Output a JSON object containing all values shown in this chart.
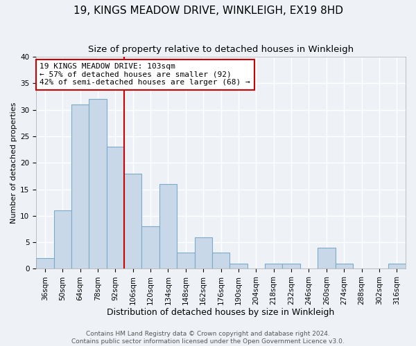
{
  "title": "19, KINGS MEADOW DRIVE, WINKLEIGH, EX19 8HD",
  "subtitle": "Size of property relative to detached houses in Winkleigh",
  "xlabel": "Distribution of detached houses by size in Winkleigh",
  "ylabel": "Number of detached properties",
  "bin_labels": [
    "36sqm",
    "50sqm",
    "64sqm",
    "78sqm",
    "92sqm",
    "106sqm",
    "120sqm",
    "134sqm",
    "148sqm",
    "162sqm",
    "176sqm",
    "190sqm",
    "204sqm",
    "218sqm",
    "232sqm",
    "246sqm",
    "260sqm",
    "274sqm",
    "288sqm",
    "302sqm",
    "316sqm"
  ],
  "bar_values": [
    2,
    11,
    31,
    32,
    23,
    18,
    8,
    16,
    3,
    6,
    3,
    1,
    0,
    1,
    1,
    0,
    4,
    1,
    0,
    0,
    1
  ],
  "bar_color": "#c8d8e8",
  "bar_edge_color": "#7aaac8",
  "vline_x": 4.5,
  "vline_color": "#cc0000",
  "ylim": [
    0,
    40
  ],
  "annotation_line1": "19 KINGS MEADOW DRIVE: 103sqm",
  "annotation_line2": "← 57% of detached houses are smaller (92)",
  "annotation_line3": "42% of semi-detached houses are larger (68) →",
  "footer1": "Contains HM Land Registry data © Crown copyright and database right 2024.",
  "footer2": "Contains public sector information licensed under the Open Government Licence v3.0.",
  "background_color": "#eef2f7",
  "grid_color": "#ffffff",
  "title_fontsize": 11,
  "subtitle_fontsize": 9.5,
  "xlabel_fontsize": 9,
  "ylabel_fontsize": 8,
  "tick_fontsize": 7.5,
  "footer_fontsize": 6.5,
  "annotation_fontsize": 8
}
